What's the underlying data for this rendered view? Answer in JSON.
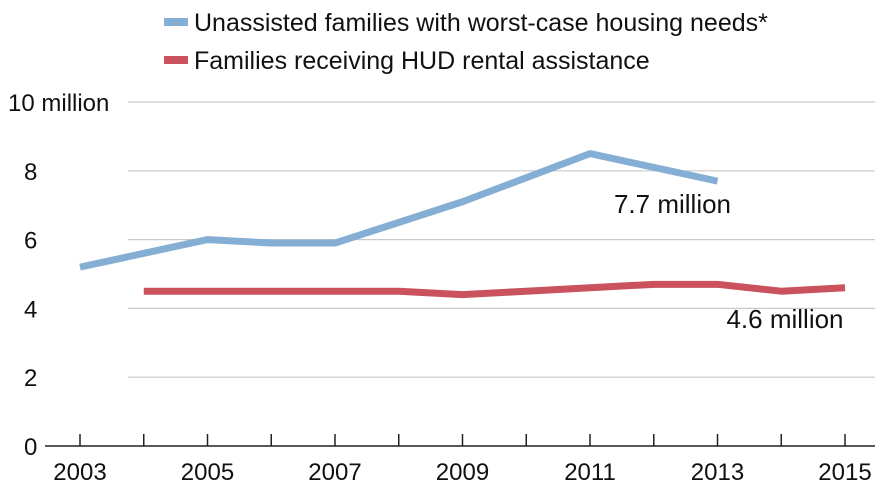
{
  "chart_data": {
    "type": "line",
    "title": "",
    "xlabel": "",
    "ylabel": "",
    "x": [
      2003,
      2004,
      2005,
      2006,
      2007,
      2008,
      2009,
      2010,
      2011,
      2012,
      2013,
      2014,
      2015
    ],
    "x_tick_labels": [
      "2003",
      "2005",
      "2007",
      "2009",
      "2011",
      "2013",
      "2015"
    ],
    "y_tick_labels": [
      "0",
      "2",
      "4",
      "6",
      "8",
      "10 million"
    ],
    "y_ticks": [
      0,
      2,
      4,
      6,
      8,
      10
    ],
    "xlim": [
      2003,
      2015
    ],
    "ylim": [
      0,
      10
    ],
    "grid": "horizontal",
    "legend_position": "top",
    "series": [
      {
        "name": "Unassisted families with worst-case housing needs*",
        "color": "#85AED4",
        "x": [
          2003,
          2005,
          2006,
          2007,
          2009,
          2011,
          2013
        ],
        "values": [
          5.2,
          6.0,
          5.9,
          5.9,
          7.1,
          8.5,
          7.7
        ],
        "end_label": "7.7 million"
      },
      {
        "name": "Families receiving HUD rental assistance",
        "color": "#C9525C",
        "x": [
          2004,
          2005,
          2006,
          2007,
          2008,
          2009,
          2010,
          2011,
          2012,
          2013,
          2014,
          2015
        ],
        "values": [
          4.5,
          4.5,
          4.5,
          4.5,
          4.5,
          4.4,
          4.5,
          4.6,
          4.7,
          4.7,
          4.5,
          4.6
        ],
        "end_label": "4.6 million"
      }
    ]
  }
}
